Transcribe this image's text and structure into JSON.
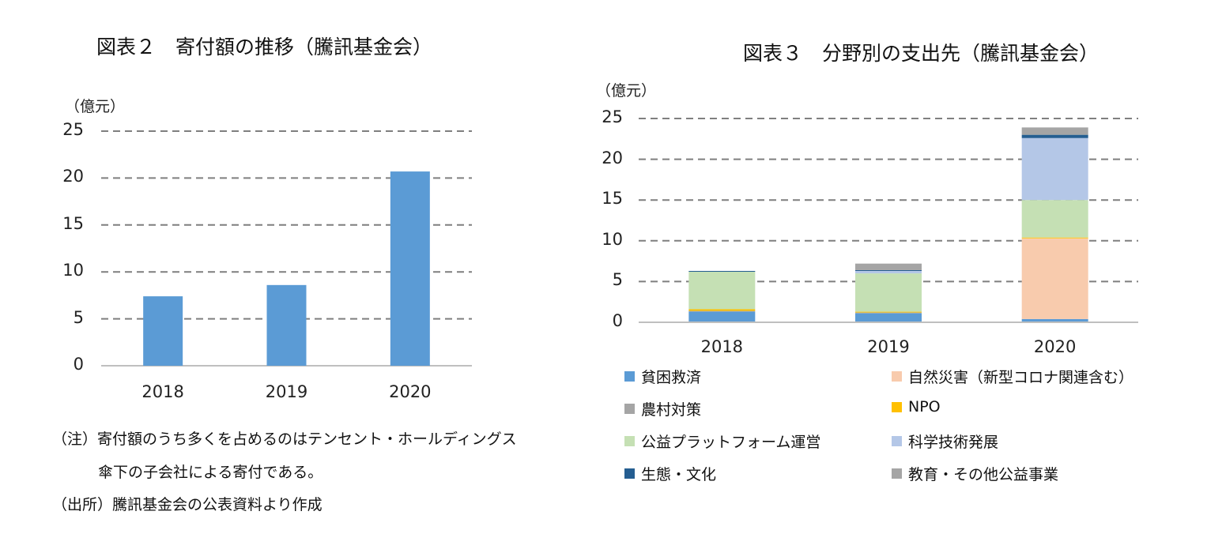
{
  "left": {
    "title": "図表２　寄付額の推移（騰訊基金会）",
    "unit": "（億元）",
    "notes": [
      "（注）寄付額のうち多くを占めるのはテンセント・ホールディングス",
      "傘下の子会社による寄付である。",
      "（出所）騰訊基金会の公表資料より作成"
    ]
  },
  "right": {
    "title": "図表３　分野別の支出先（騰訊基金会）",
    "unit": "（億元）"
  },
  "chart_data": [
    {
      "type": "bar",
      "title": "図表２　寄付額の推移（騰訊基金会）",
      "ylabel": "（億元）",
      "xlabel": "",
      "categories": [
        "2018",
        "2019",
        "2020"
      ],
      "values": [
        7.4,
        8.6,
        20.7
      ],
      "ylim": [
        0,
        25
      ],
      "yticks": [
        0,
        5,
        10,
        15,
        20,
        25
      ],
      "grid": true,
      "colors": {
        "bar": "#5b9bd5"
      }
    },
    {
      "type": "bar",
      "stacked": true,
      "title": "図表３　分野別の支出先（騰訊基金会）",
      "ylabel": "（億元）",
      "xlabel": "",
      "categories": [
        "2018",
        "2019",
        "2020"
      ],
      "ylim": [
        0,
        25
      ],
      "yticks": [
        0,
        5,
        10,
        15,
        20,
        25
      ],
      "grid": true,
      "legend_position": "bottom",
      "series": [
        {
          "name": "貧困救済",
          "values": [
            1.3,
            1.1,
            0.4
          ],
          "color": "#5b9bd5"
        },
        {
          "name": "自然災害（新型コロナ関連含む）",
          "values": [
            0.0,
            0.0,
            9.9
          ],
          "color": "#f8cbad"
        },
        {
          "name": "農村対策",
          "values": [
            0.1,
            0.1,
            0.0
          ],
          "color": "#a5a5a5"
        },
        {
          "name": "NPO",
          "values": [
            0.2,
            0.1,
            0.1
          ],
          "color": "#ffc000"
        },
        {
          "name": "公益プラットフォーム運営",
          "values": [
            4.6,
            4.7,
            4.6
          ],
          "color": "#c5e0b4"
        },
        {
          "name": "科学技術発展",
          "values": [
            0.0,
            0.3,
            7.6
          ],
          "color": "#b4c7e7"
        },
        {
          "name": "生態・文化",
          "values": [
            0.1,
            0.1,
            0.4
          ],
          "color": "#255e91"
        },
        {
          "name": "教育・その他公益事業",
          "values": [
            0.0,
            0.8,
            0.9
          ],
          "color": "#a5a5a5"
        }
      ]
    }
  ]
}
